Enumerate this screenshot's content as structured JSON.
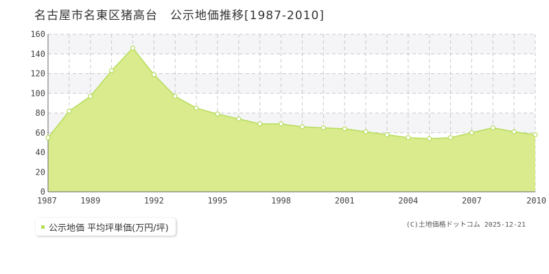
{
  "title": "名古屋市名東区猪高台　公示地価推移[1987-2010]",
  "legend_label": "公示地価 平均坪単価(万円/坪)",
  "credit": "(C)土地価格ドットコム 2025-12-21",
  "colors": {
    "area_fill": "#d9eb8d",
    "line": "#b5dc5a",
    "marker_stroke": "#b5dc5a",
    "band": "#f5f5f8",
    "grid": "#c8c8c8",
    "axis": "#666666"
  },
  "chart_data": {
    "type": "area",
    "title": "名古屋市名東区猪高台　公示地価推移[1987-2010]",
    "xlabel": "",
    "ylabel": "",
    "x": [
      1987,
      1988,
      1989,
      1990,
      1991,
      1992,
      1993,
      1994,
      1995,
      1996,
      1997,
      1998,
      1999,
      2000,
      2001,
      2002,
      2003,
      2004,
      2005,
      2006,
      2007,
      2008,
      2009,
      2010
    ],
    "series": [
      {
        "name": "公示地価 平均坪単価(万円/坪)",
        "values": [
          55,
          82,
          97,
          123,
          146,
          119,
          97,
          85,
          79,
          74,
          69,
          69,
          66,
          65,
          64,
          61,
          58,
          55,
          54,
          55,
          60,
          65,
          61,
          58
        ]
      }
    ],
    "xlim": [
      1987,
      2010
    ],
    "ylim": [
      0,
      160
    ],
    "yticks": [
      0,
      20,
      40,
      60,
      80,
      100,
      120,
      140,
      160
    ],
    "xtick_labels": [
      "1987",
      "1989",
      "1992",
      "1995",
      "1998",
      "2001",
      "2004",
      "2007",
      "2010"
    ],
    "grid": true,
    "legend": "bottom-left"
  }
}
